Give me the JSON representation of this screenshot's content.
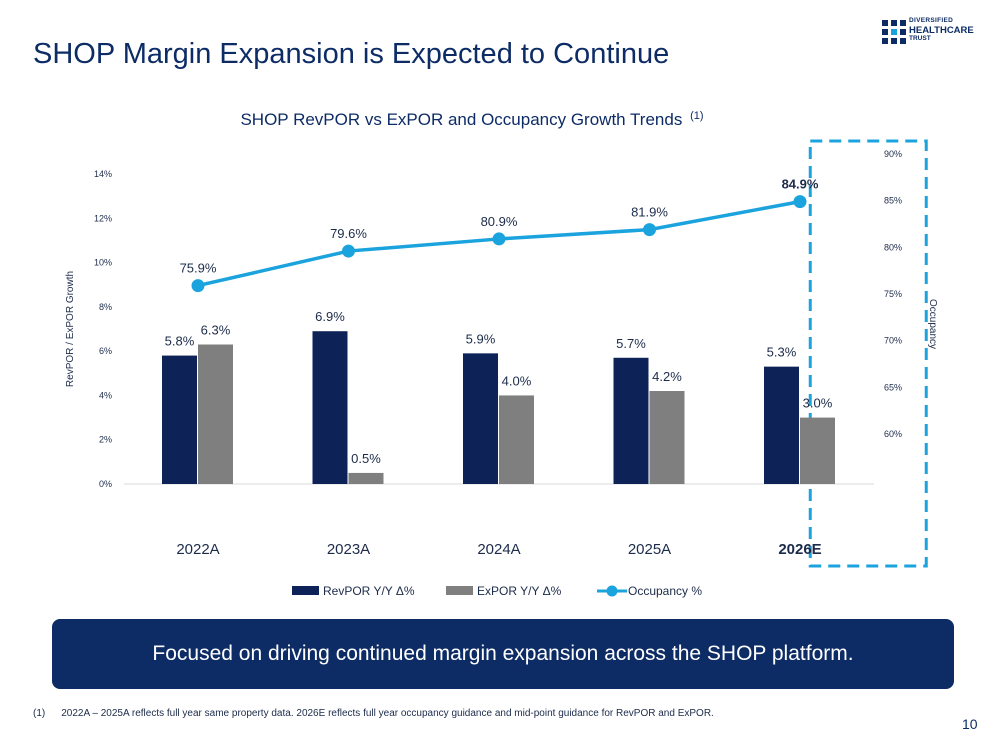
{
  "page": {
    "title": "SHOP Margin Expansion is Expected to Continue",
    "logo": {
      "line1": "DIVERSIFIED",
      "line2": "HEALTHCARE",
      "line3": "TRUST"
    },
    "banner": "Focused on driving continued margin expansion across the SHOP platform.",
    "footnote_number": "(1)",
    "footnote": "2022A – 2025A reflects full year same property data. 2026E reflects full year occupancy guidance and mid-point guidance for RevPOR and ExPOR.",
    "page_number": "10"
  },
  "chart_data": {
    "type": "bar",
    "title": "SHOP RevPOR vs ExPOR and Occupancy Growth Trends",
    "title_superscript": "(1)",
    "categories": [
      "2022A",
      "2023A",
      "2024A",
      "2025A",
      "2026E"
    ],
    "highlighted_category": "2026E",
    "ylabel": "RevPOR / ExPOR Growth",
    "ylim": [
      0,
      14
    ],
    "yticks": [
      "0%",
      "2%",
      "4%",
      "6%",
      "8%",
      "10%",
      "12%",
      "14%"
    ],
    "y2label": "Occupancy",
    "y2lim": [
      60,
      90
    ],
    "y2ticks": [
      "60%",
      "65%",
      "70%",
      "75%",
      "80%",
      "85%",
      "90%"
    ],
    "series": [
      {
        "name": "RevPOR Y/Y Δ%",
        "kind": "bar",
        "color": "#0d2357",
        "values": [
          5.8,
          6.9,
          5.9,
          5.7,
          5.3
        ],
        "labels": [
          "5.8%",
          "6.9%",
          "5.9%",
          "5.7%",
          "5.3%"
        ]
      },
      {
        "name": "ExPOR Y/Y Δ%",
        "kind": "bar",
        "color": "#7f7f7f",
        "values": [
          6.3,
          0.5,
          4.0,
          4.2,
          3.0
        ],
        "labels": [
          "6.3%",
          "0.5%",
          "4.0%",
          "4.2%",
          "3.0%"
        ]
      },
      {
        "name": "Occupancy %",
        "kind": "line",
        "axis": "secondary",
        "color": "#1ba3de",
        "values": [
          75.9,
          79.6,
          80.9,
          81.9,
          84.9
        ],
        "labels": [
          "75.9%",
          "79.6%",
          "80.9%",
          "81.9%",
          "84.9%"
        ]
      }
    ],
    "legend": "bottom"
  }
}
